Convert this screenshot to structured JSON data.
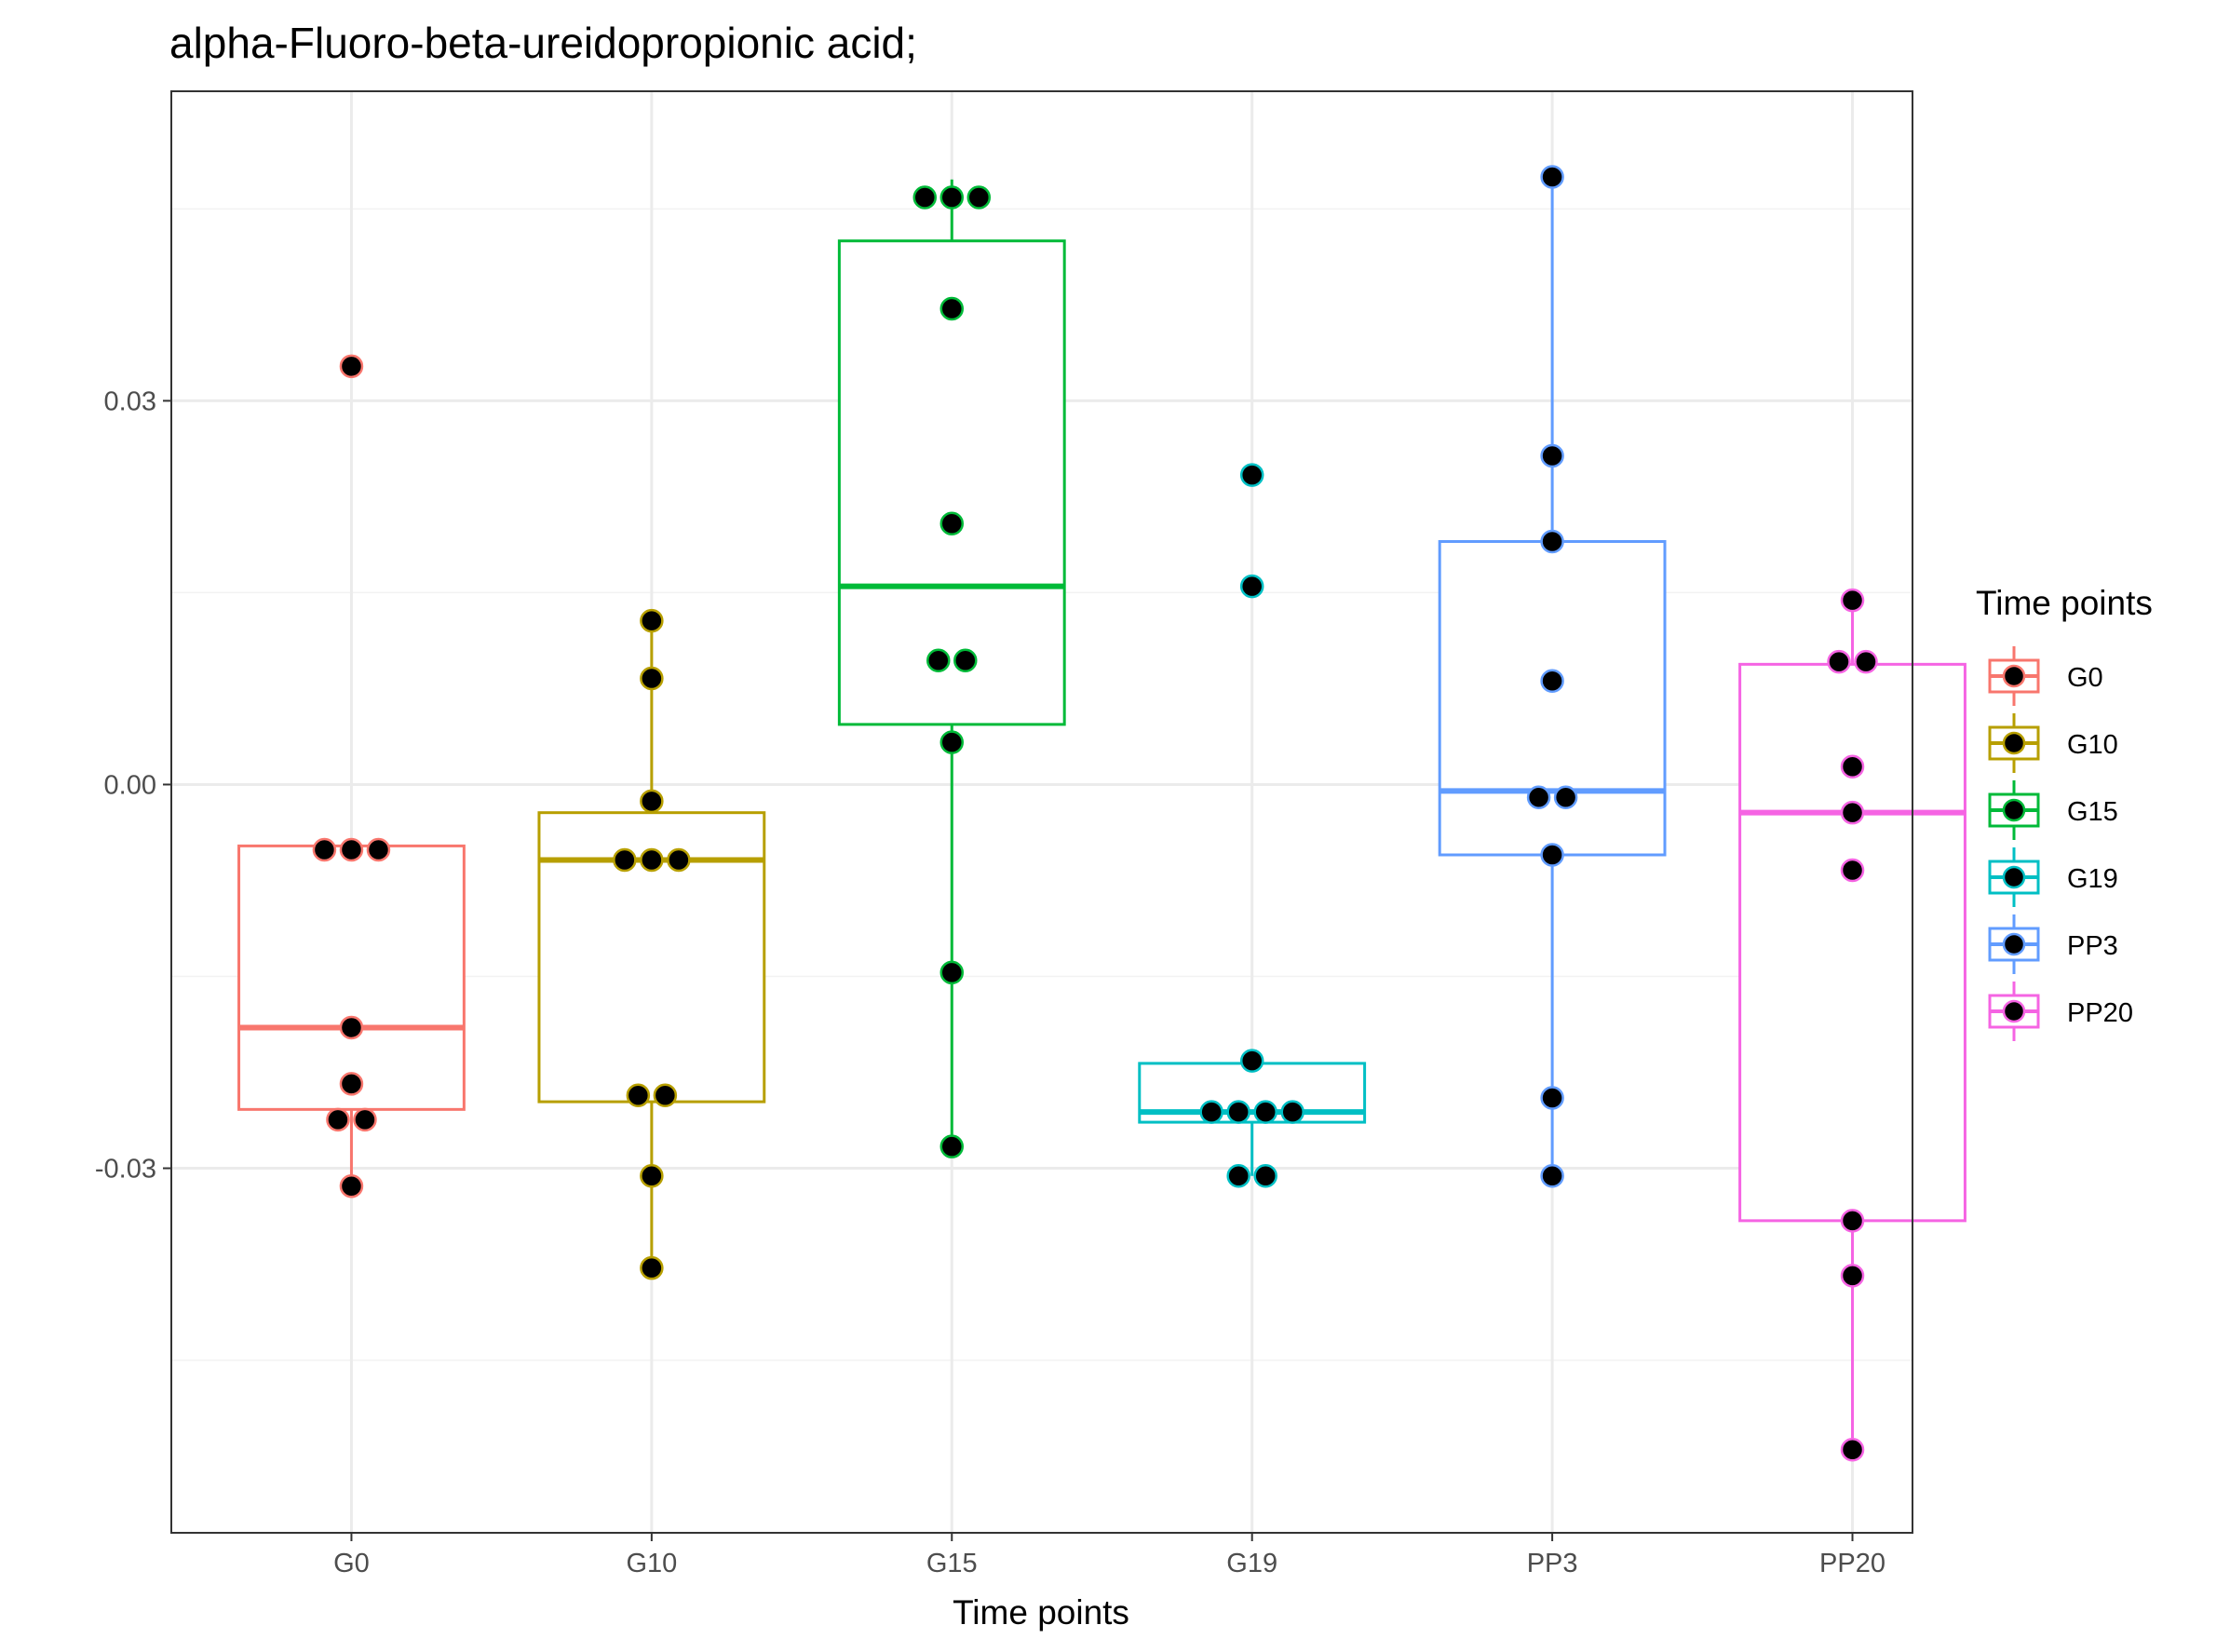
{
  "chart_data": {
    "type": "box",
    "title": "alpha-Fluoro-beta-ureidopropionic acid;",
    "xlabel": "Time points",
    "ylabel": "",
    "ylim": [
      -0.0585,
      0.0542
    ],
    "yticks": [
      -0.03,
      0.0,
      0.03
    ],
    "ytick_labels": [
      "-0.03",
      "0.00",
      "0.03"
    ],
    "minor_yticks": [
      -0.045,
      -0.015,
      0.015,
      0.045
    ],
    "categories": [
      "G0",
      "G10",
      "G15",
      "G19",
      "PP3",
      "PP20"
    ],
    "grid": true,
    "legend": {
      "title": "Time points",
      "position": "right",
      "entries": [
        "G0",
        "G10",
        "G15",
        "G19",
        "PP3",
        "PP20"
      ]
    },
    "series": [
      {
        "name": "G0",
        "color": "#F8766D",
        "box": {
          "q1": -0.0254,
          "median": -0.019,
          "q3": -0.0048,
          "whisker_low": -0.0314,
          "whisker_high": -0.0048
        },
        "points": [
          {
            "y": 0.0327,
            "offset": 0.0
          },
          {
            "y": -0.0051,
            "offset": -0.09
          },
          {
            "y": -0.0051,
            "offset": 0.0
          },
          {
            "y": -0.0051,
            "offset": 0.09
          },
          {
            "y": -0.019,
            "offset": 0.0
          },
          {
            "y": -0.0234,
            "offset": 0.0
          },
          {
            "y": -0.0262,
            "offset": -0.045
          },
          {
            "y": -0.0262,
            "offset": 0.045
          },
          {
            "y": -0.0314,
            "offset": 0.0
          }
        ]
      },
      {
        "name": "G10",
        "color": "#B79F00",
        "box": {
          "q1": -0.0248,
          "median": -0.0059,
          "q3": -0.0022,
          "whisker_low": -0.0378,
          "whisker_high": 0.0128
        },
        "points": [
          {
            "y": 0.0128,
            "offset": 0.0
          },
          {
            "y": 0.0083,
            "offset": 0.0
          },
          {
            "y": -0.0013,
            "offset": 0.0
          },
          {
            "y": -0.0059,
            "offset": -0.09
          },
          {
            "y": -0.0059,
            "offset": 0.0
          },
          {
            "y": -0.0059,
            "offset": 0.09
          },
          {
            "y": -0.0243,
            "offset": -0.045
          },
          {
            "y": -0.0243,
            "offset": 0.045
          },
          {
            "y": -0.0306,
            "offset": 0.0
          },
          {
            "y": -0.0378,
            "offset": 0.0
          }
        ]
      },
      {
        "name": "G15",
        "color": "#00BA38",
        "box": {
          "q1": 0.0047,
          "median": 0.0155,
          "q3": 0.0425,
          "whisker_low": -0.0283,
          "whisker_high": 0.0473
        },
        "points": [
          {
            "y": 0.0459,
            "offset": -0.09
          },
          {
            "y": 0.0459,
            "offset": 0.0
          },
          {
            "y": 0.0459,
            "offset": 0.09
          },
          {
            "y": 0.0372,
            "offset": 0.0
          },
          {
            "y": 0.0204,
            "offset": 0.0
          },
          {
            "y": 0.0097,
            "offset": -0.045
          },
          {
            "y": 0.0097,
            "offset": 0.045
          },
          {
            "y": 0.0033,
            "offset": 0.0
          },
          {
            "y": -0.0147,
            "offset": 0.0
          },
          {
            "y": -0.0283,
            "offset": 0.0
          }
        ]
      },
      {
        "name": "G19",
        "color": "#00BFC4",
        "box": {
          "q1": -0.0264,
          "median": -0.0256,
          "q3": -0.0218,
          "whisker_low": -0.0306,
          "whisker_high": -0.0218
        },
        "points": [
          {
            "y": 0.0242,
            "offset": 0.0
          },
          {
            "y": 0.0155,
            "offset": 0.0
          },
          {
            "y": -0.0216,
            "offset": 0.0
          },
          {
            "y": -0.0256,
            "offset": -0.135
          },
          {
            "y": -0.0256,
            "offset": -0.045
          },
          {
            "y": -0.0256,
            "offset": 0.045
          },
          {
            "y": -0.0256,
            "offset": 0.135
          },
          {
            "y": -0.0306,
            "offset": -0.045
          },
          {
            "y": -0.0306,
            "offset": 0.045
          }
        ]
      },
      {
        "name": "PP3",
        "color": "#619CFF",
        "box": {
          "q1": -0.0055,
          "median": -0.0005,
          "q3": 0.019,
          "whisker_low": -0.0306,
          "whisker_high": 0.0475
        },
        "points": [
          {
            "y": 0.0475,
            "offset": 0.0
          },
          {
            "y": 0.0257,
            "offset": 0.0
          },
          {
            "y": 0.019,
            "offset": 0.0
          },
          {
            "y": 0.0081,
            "offset": 0.0
          },
          {
            "y": -0.001,
            "offset": -0.045
          },
          {
            "y": -0.001,
            "offset": 0.045
          },
          {
            "y": -0.0055,
            "offset": 0.0
          },
          {
            "y": -0.0245,
            "offset": 0.0
          },
          {
            "y": -0.0306,
            "offset": 0.0
          }
        ]
      },
      {
        "name": "PP20",
        "color": "#F564E3",
        "box": {
          "q1": -0.0341,
          "median": -0.0022,
          "q3": 0.0094,
          "whisker_low": -0.052,
          "whisker_high": 0.0144
        },
        "points": [
          {
            "y": 0.0144,
            "offset": 0.0
          },
          {
            "y": 0.0096,
            "offset": -0.045
          },
          {
            "y": 0.0096,
            "offset": 0.045
          },
          {
            "y": 0.0014,
            "offset": 0.0
          },
          {
            "y": -0.0022,
            "offset": 0.0
          },
          {
            "y": -0.0067,
            "offset": 0.0
          },
          {
            "y": -0.0341,
            "offset": 0.0
          },
          {
            "y": -0.0384,
            "offset": 0.0
          },
          {
            "y": -0.052,
            "offset": 0.0
          }
        ]
      }
    ]
  }
}
